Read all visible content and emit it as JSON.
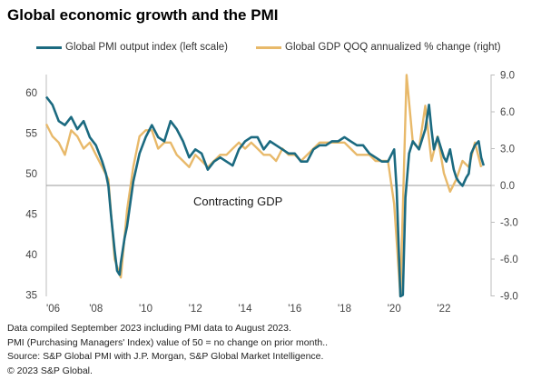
{
  "title": "Global economic growth and the PMI",
  "chart_data": {
    "type": "line",
    "series": [
      {
        "name": "Global PMI output index (left scale)",
        "axis": "left",
        "color": "#1b6a80",
        "x": [
          2006.0,
          2006.25,
          2006.5,
          2006.75,
          2007.0,
          2007.25,
          2007.5,
          2007.75,
          2008.0,
          2008.25,
          2008.4,
          2008.5,
          2008.6,
          2008.75,
          2008.85,
          2008.95,
          2009.0,
          2009.15,
          2009.25,
          2009.5,
          2009.75,
          2010.0,
          2010.25,
          2010.5,
          2010.75,
          2011.0,
          2011.25,
          2011.5,
          2011.75,
          2012.0,
          2012.25,
          2012.5,
          2012.75,
          2013.0,
          2013.25,
          2013.5,
          2013.75,
          2014.0,
          2014.25,
          2014.5,
          2014.75,
          2015.0,
          2015.25,
          2015.5,
          2015.75,
          2016.0,
          2016.25,
          2016.5,
          2016.75,
          2017.0,
          2017.25,
          2017.5,
          2017.75,
          2018.0,
          2018.25,
          2018.5,
          2018.75,
          2019.0,
          2019.25,
          2019.5,
          2019.75,
          2020.0,
          2020.1,
          2020.25,
          2020.35,
          2020.45,
          2020.6,
          2020.75,
          2021.0,
          2021.25,
          2021.4,
          2021.5,
          2021.6,
          2021.75,
          2022.0,
          2022.1,
          2022.25,
          2022.4,
          2022.5,
          2022.6,
          2022.75,
          2022.9,
          2023.0,
          2023.1,
          2023.25,
          2023.4,
          2023.5,
          2023.6
        ],
        "values": [
          59.5,
          58.5,
          56.5,
          56.0,
          57.0,
          55.5,
          56.5,
          54.5,
          53.5,
          51.5,
          50.0,
          48.5,
          45.0,
          40.5,
          38.0,
          37.5,
          39.0,
          42.0,
          43.5,
          49.0,
          52.5,
          54.5,
          56.0,
          54.5,
          54.0,
          56.5,
          55.5,
          54.0,
          52.0,
          53.0,
          52.5,
          50.5,
          51.5,
          52.0,
          51.5,
          51.0,
          53.0,
          54.0,
          54.5,
          54.5,
          53.0,
          54.0,
          53.5,
          53.0,
          52.5,
          52.5,
          51.5,
          51.5,
          53.0,
          53.5,
          53.5,
          54.0,
          54.0,
          54.5,
          54.0,
          53.5,
          53.5,
          52.5,
          52.0,
          51.5,
          51.5,
          53.0,
          48.0,
          34.0,
          35.0,
          47.0,
          52.5,
          54.0,
          53.0,
          55.5,
          58.5,
          55.5,
          53.0,
          54.5,
          52.0,
          51.5,
          53.0,
          50.5,
          49.5,
          49.0,
          48.5,
          49.5,
          50.0,
          52.5,
          53.5,
          54.0,
          52.0,
          51.0
        ]
      },
      {
        "name": "Global GDP QOQ annualized % change (right)",
        "axis": "right",
        "color": "#e8b96a",
        "x": [
          2006.0,
          2006.25,
          2006.5,
          2006.75,
          2007.0,
          2007.25,
          2007.5,
          2007.75,
          2008.0,
          2008.25,
          2008.5,
          2008.75,
          2009.0,
          2009.25,
          2009.5,
          2009.75,
          2010.0,
          2010.25,
          2010.5,
          2010.75,
          2011.0,
          2011.25,
          2011.5,
          2011.75,
          2012.0,
          2012.25,
          2012.5,
          2012.75,
          2013.0,
          2013.25,
          2013.5,
          2013.75,
          2014.0,
          2014.25,
          2014.5,
          2014.75,
          2015.0,
          2015.25,
          2015.5,
          2015.75,
          2016.0,
          2016.25,
          2016.5,
          2016.75,
          2017.0,
          2017.25,
          2017.5,
          2017.75,
          2018.0,
          2018.25,
          2018.5,
          2018.75,
          2019.0,
          2019.25,
          2019.5,
          2019.75,
          2020.0,
          2020.25,
          2020.5,
          2020.75,
          2021.0,
          2021.25,
          2021.5,
          2021.75,
          2022.0,
          2022.25,
          2022.5,
          2022.75,
          2023.0,
          2023.25,
          2023.5
        ],
        "values": [
          5.0,
          4.0,
          3.5,
          2.5,
          4.5,
          4.0,
          3.0,
          3.5,
          2.5,
          1.5,
          0.5,
          -6.0,
          -7.5,
          -2.0,
          1.5,
          4.0,
          4.5,
          4.5,
          3.0,
          3.5,
          3.5,
          2.5,
          2.0,
          1.5,
          2.5,
          2.0,
          1.5,
          2.0,
          2.5,
          2.5,
          3.0,
          3.5,
          3.0,
          3.5,
          3.0,
          2.5,
          2.5,
          2.0,
          3.0,
          2.5,
          2.5,
          2.0,
          2.5,
          3.0,
          3.5,
          3.5,
          3.5,
          3.5,
          3.5,
          3.0,
          2.5,
          2.5,
          2.5,
          2.0,
          2.0,
          2.0,
          -1.5,
          -9.0,
          9.0,
          3.5,
          3.0,
          6.5,
          2.0,
          4.0,
          1.0,
          -0.5,
          0.5,
          2.0,
          1.5,
          3.5,
          1.5
        ]
      }
    ],
    "left_axis": {
      "ylim": [
        35,
        62
      ],
      "ticks": [
        35,
        40,
        45,
        50,
        55,
        60
      ]
    },
    "right_axis": {
      "ylim": [
        -9,
        9
      ],
      "ticks": [
        "-9.0",
        "-6.0",
        "-3.0",
        "0.0",
        "3.0",
        "6.0",
        "9.0"
      ]
    },
    "x_axis": {
      "xlim": [
        2006,
        2023.9
      ],
      "ticks": [
        "'06",
        "'08",
        "'10",
        "'12",
        "'14",
        "'16",
        "'18",
        "'20",
        "'22"
      ]
    },
    "annotation": "Contracting GDP",
    "legend_position": "top"
  },
  "notes": [
    "Data compiled September 2023 including PMI data to August 2023.",
    "PMI (Purchasing Managers' Index) value of 50 = no change on prior month..",
    "Source: S&P Global PMI with J.P. Morgan, S&P Global Market Intelligence.",
    "© 2023 S&P Global."
  ]
}
